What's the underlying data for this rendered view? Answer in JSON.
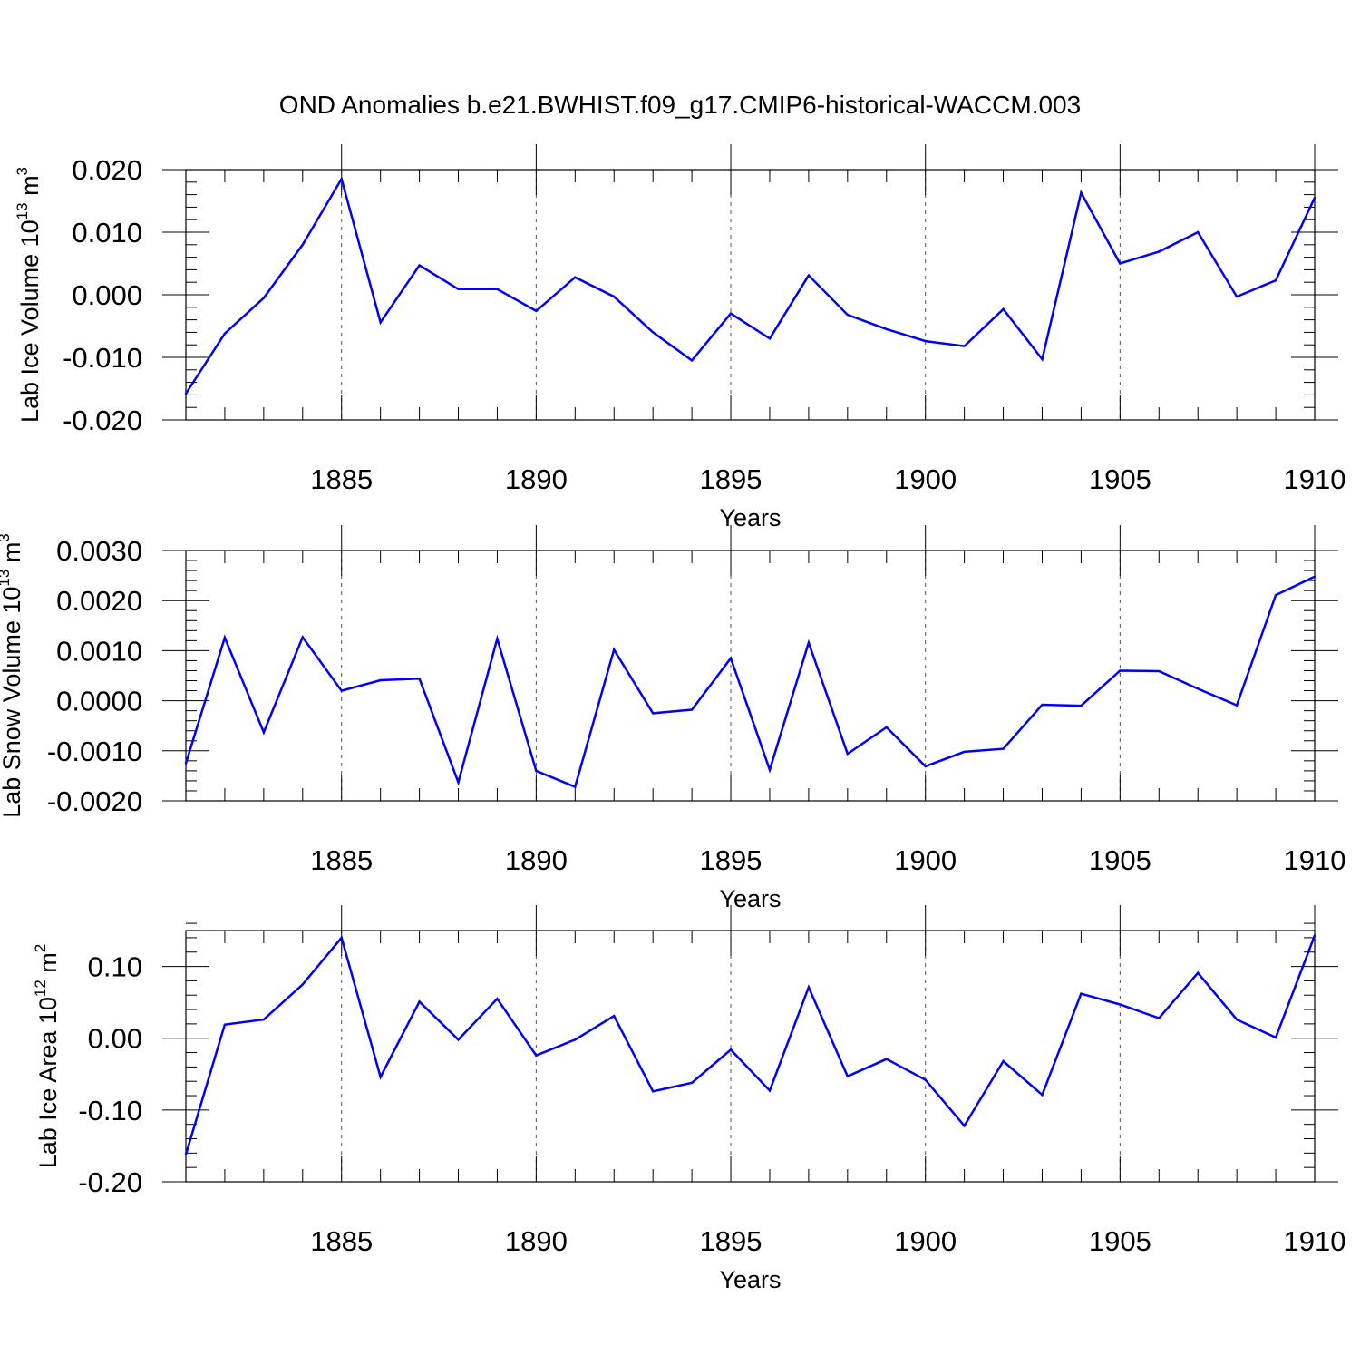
{
  "title": "OND Anomalies b.e21.BWHIST.f09_g17.CMIP6-historical-WACCM.003",
  "colors": {
    "line": "#0000ff",
    "axis": "#000000",
    "grid": "#555555",
    "background": "#ffffff"
  },
  "chart_data": [
    {
      "type": "line",
      "ylabel_main": "Lab Ice Volume 10",
      "ylabel_exp": "13",
      "ylabel_unit": "m",
      "ylabel_unit_exp": "3",
      "xlabel": "Years",
      "xlim": [
        1881,
        1910
      ],
      "ylim": [
        -0.02,
        0.02
      ],
      "xticks": [
        1885,
        1890,
        1895,
        1900,
        1905,
        1910
      ],
      "yticks": [
        -0.02,
        -0.01,
        0.0,
        0.01,
        0.02
      ],
      "yticklabels": [
        "-0.020",
        "-0.010",
        "0.000",
        "0.010",
        "0.020"
      ],
      "x": [
        1881,
        1882,
        1883,
        1884,
        1885,
        1886,
        1887,
        1888,
        1889,
        1890,
        1891,
        1892,
        1893,
        1894,
        1895,
        1896,
        1897,
        1898,
        1899,
        1900,
        1901,
        1902,
        1903,
        1904,
        1905,
        1906,
        1907,
        1908,
        1909,
        1910
      ],
      "values": [
        -0.0158,
        -0.0062,
        -0.0005,
        0.008,
        0.0185,
        -0.0044,
        0.0047,
        0.0009,
        0.0009,
        -0.0026,
        0.0028,
        -0.0003,
        -0.006,
        -0.0105,
        -0.003,
        -0.007,
        0.0031,
        -0.0032,
        -0.0055,
        -0.0074,
        -0.0082,
        -0.0023,
        -0.0103,
        0.0163,
        0.005,
        0.0069,
        0.01,
        -0.0003,
        0.0023,
        0.0155
      ]
    },
    {
      "type": "line",
      "ylabel_main": "Lab Snow Volume 10",
      "ylabel_exp": "13",
      "ylabel_unit": "m",
      "ylabel_unit_exp": "3",
      "xlabel": "Years",
      "xlim": [
        1881,
        1910
      ],
      "ylim": [
        -0.002,
        0.003
      ],
      "xticks": [
        1885,
        1890,
        1895,
        1900,
        1905,
        1910
      ],
      "yticks": [
        -0.002,
        -0.001,
        0.0,
        0.001,
        0.002,
        0.003
      ],
      "yticklabels": [
        "-0.0020",
        "-0.0010",
        "0.0000",
        "0.0010",
        "0.0020",
        "0.0030"
      ],
      "x": [
        1881,
        1882,
        1883,
        1884,
        1885,
        1886,
        1887,
        1888,
        1889,
        1890,
        1891,
        1892,
        1893,
        1894,
        1895,
        1896,
        1897,
        1898,
        1899,
        1900,
        1901,
        1902,
        1903,
        1904,
        1905,
        1906,
        1907,
        1908,
        1909,
        1910
      ],
      "values": [
        -0.00125,
        0.00126,
        -0.00063,
        0.00127,
        0.0002,
        0.00041,
        0.00044,
        -0.00163,
        0.00124,
        -0.0014,
        -0.00172,
        0.00102,
        -0.00025,
        -0.00018,
        0.00085,
        -0.00138,
        0.00116,
        -0.00106,
        -0.00053,
        -0.00131,
        -0.00102,
        -0.00096,
        -8e-05,
        -0.0001,
        0.0006,
        0.00059,
        0.00024,
        -9e-05,
        0.00211,
        0.00248
      ]
    },
    {
      "type": "line",
      "ylabel_main": "Lab Ice Area 10",
      "ylabel_exp": "12",
      "ylabel_unit": "m",
      "ylabel_unit_exp": "2",
      "xlabel": "Years",
      "xlim": [
        1881,
        1910
      ],
      "ylim": [
        -0.2,
        0.15
      ],
      "xticks": [
        1885,
        1890,
        1895,
        1900,
        1905,
        1910
      ],
      "yticks": [
        -0.2,
        -0.1,
        0.0,
        0.1
      ],
      "yticklabels": [
        "-0.20",
        "-0.10",
        "0.00",
        "0.10"
      ],
      "x": [
        1881,
        1882,
        1883,
        1884,
        1885,
        1886,
        1887,
        1888,
        1889,
        1890,
        1891,
        1892,
        1893,
        1894,
        1895,
        1896,
        1897,
        1898,
        1899,
        1900,
        1901,
        1902,
        1903,
        1904,
        1905,
        1906,
        1907,
        1908,
        1909,
        1910
      ],
      "values": [
        -0.162,
        0.019,
        0.026,
        0.075,
        0.14,
        -0.054,
        0.051,
        -0.002,
        0.055,
        -0.024,
        -0.002,
        0.031,
        -0.074,
        -0.062,
        -0.016,
        -0.073,
        0.071,
        -0.053,
        -0.029,
        -0.058,
        -0.122,
        -0.032,
        -0.079,
        0.062,
        0.047,
        0.028,
        0.091,
        0.026,
        0.001,
        0.143
      ]
    }
  ]
}
